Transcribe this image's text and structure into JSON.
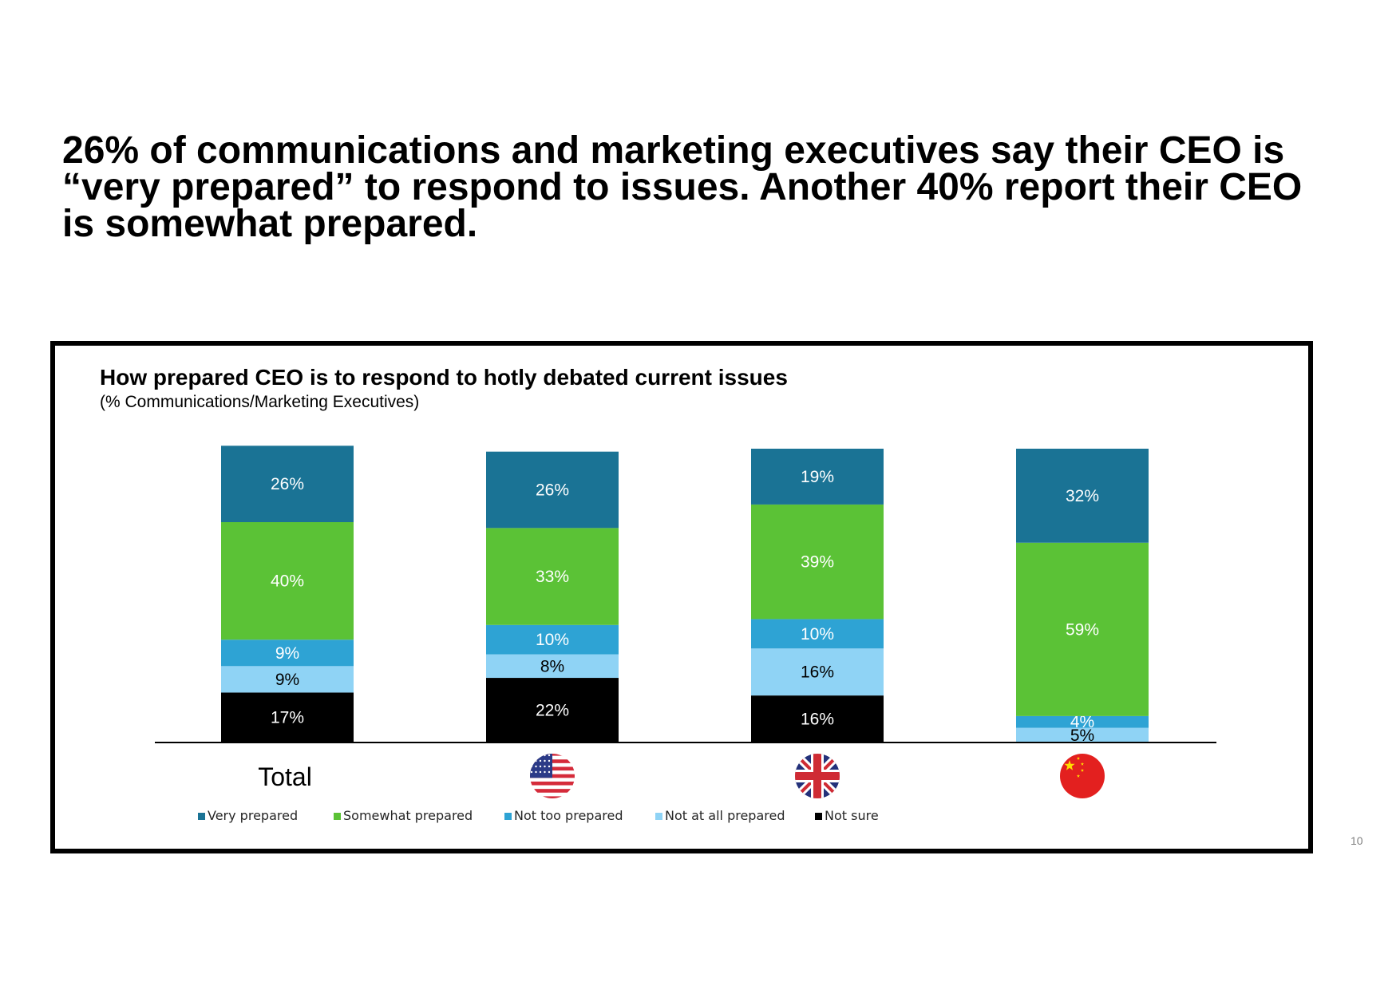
{
  "headline": {
    "line1": "26% of communications and marketing executives say their CEO is",
    "line2": "“very prepared” to respond to issues. Another 40% report their CEO",
    "line3": "is somewhat prepared."
  },
  "chart_data": {
    "type": "bar",
    "stacked": true,
    "title": "How prepared CEO is to respond to hotly debated current issues",
    "subtitle": "(% Communications/Marketing Executives)",
    "categories": [
      "Total",
      "United States",
      "United Kingdom",
      "China"
    ],
    "category_labels": [
      "Total",
      "",
      "",
      ""
    ],
    "category_icons": [
      "",
      "us-flag-icon",
      "uk-flag-icon",
      "china-flag-icon"
    ],
    "ylim": [
      0,
      100
    ],
    "legend_position": "bottom",
    "series": [
      {
        "name": "Not sure",
        "color": "#000000",
        "label_color": "#ffffff",
        "values": [
          17,
          22,
          16,
          0
        ]
      },
      {
        "name": "Not at all prepared",
        "color": "#8fd3f5",
        "label_color": "#000000",
        "values": [
          9,
          8,
          16,
          5
        ]
      },
      {
        "name": "Not too prepared",
        "color": "#2ea3d4",
        "label_color": "#ffffff",
        "values": [
          9,
          10,
          10,
          4
        ]
      },
      {
        "name": "Somewhat prepared",
        "color": "#5bc236",
        "label_color": "#ffffff",
        "values": [
          40,
          33,
          39,
          59
        ]
      },
      {
        "name": "Very prepared",
        "color": "#1a7395",
        "label_color": "#ffffff",
        "values": [
          26,
          26,
          19,
          32
        ]
      }
    ],
    "legend_order": [
      "Very prepared",
      "Somewhat prepared",
      "Not too prepared",
      "Not at all prepared",
      "Not sure"
    ]
  },
  "page_number": "10"
}
